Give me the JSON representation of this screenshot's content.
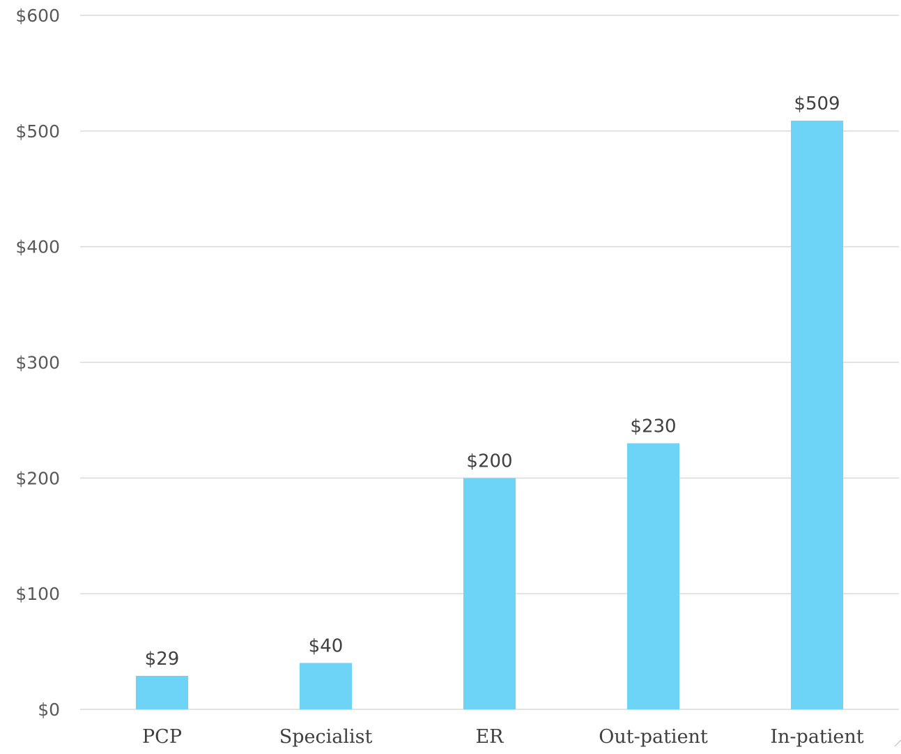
{
  "chart_data": {
    "type": "bar",
    "categories": [
      "PCP",
      "Specialist",
      "ER",
      "Out-patient",
      "In-patient"
    ],
    "values": [
      29,
      40,
      200,
      230,
      509
    ],
    "data_labels": [
      "$29",
      "$40",
      "$200",
      "$230",
      "$509"
    ],
    "y_ticks": [
      0,
      100,
      200,
      300,
      400,
      500,
      600
    ],
    "y_tick_labels": [
      "$0",
      "$100",
      "$200",
      "$300",
      "$400",
      "$500",
      "$600"
    ],
    "ylim": [
      0,
      600
    ],
    "grid": true,
    "legend": "none",
    "title": "",
    "xlabel": "",
    "ylabel": "",
    "bar_color": "#6dd3f7",
    "grid_color": "#d9d9d9"
  }
}
